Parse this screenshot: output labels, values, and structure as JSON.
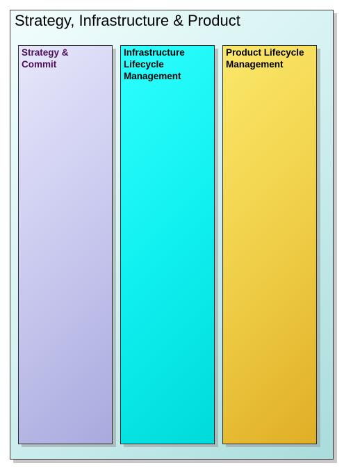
{
  "diagram": {
    "title": "Strategy, Infrastructure & Product",
    "columns": [
      {
        "label": "Strategy &\nCommit",
        "text_color": "#4b0f5a",
        "fill": "#c9c9ef"
      },
      {
        "label": "Infrastructure\nLifecycle\nManagement",
        "text_color": "#000000",
        "fill": "#10f0f0"
      },
      {
        "label": "Product Lifecycle\nManagement",
        "text_color": "#000000",
        "fill": "#f0cf48"
      }
    ]
  }
}
